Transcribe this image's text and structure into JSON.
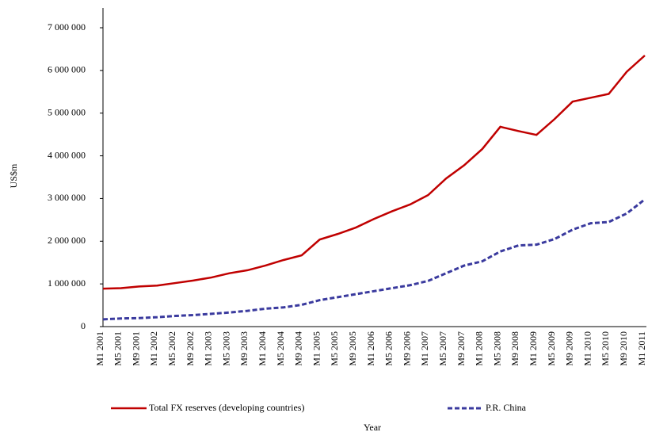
{
  "chart_data": {
    "type": "line",
    "y_label": "US$m",
    "x_label": "Year",
    "categories": [
      "M1 2001",
      "M5 2001",
      "M9 2001",
      "M1 2002",
      "M5 2002",
      "M9 2002",
      "M1 2003",
      "M5 2003",
      "M9 2003",
      "M1 2004",
      "M5 2004",
      "M9 2004",
      "M1 2005",
      "M5 2005",
      "M9 2005",
      "M1 2006",
      "M5 2006",
      "M9 2006",
      "M1 2007",
      "M5 2007",
      "M9 2007",
      "M1 2008",
      "M5 2008",
      "M9 2008",
      "M1 2009",
      "M5 2009",
      "M9 2009",
      "M1 2010",
      "M5 2010",
      "M9 2010",
      "M1 2011"
    ],
    "series": [
      {
        "name": "Total FX reserves (developing countries)",
        "color": "#c00000",
        "dash": false,
        "values": [
          890000,
          900000,
          940000,
          960000,
          1020000,
          1080000,
          1150000,
          1250000,
          1320000,
          1430000,
          1560000,
          1670000,
          2040000,
          2170000,
          2320000,
          2520000,
          2700000,
          2860000,
          3080000,
          3470000,
          3780000,
          4160000,
          4680000,
          4580000,
          4490000,
          4860000,
          5270000,
          5360000,
          5450000,
          5970000,
          6350000
        ]
      },
      {
        "name": "P.R. China",
        "color": "#3a3a9e",
        "dash": true,
        "values": [
          170000,
          190000,
          200000,
          220000,
          250000,
          270000,
          300000,
          330000,
          370000,
          420000,
          450000,
          510000,
          620000,
          690000,
          760000,
          830000,
          900000,
          970000,
          1070000,
          1250000,
          1430000,
          1530000,
          1760000,
          1900000,
          1920000,
          2050000,
          2270000,
          2420000,
          2450000,
          2650000,
          2980000
        ]
      }
    ],
    "ylim": [
      0,
      7000000
    ],
    "yticks": [
      0,
      {
        "value": 1000000,
        "label": "1 000 000"
      },
      {
        "value": 2000000,
        "label": "2 000 000"
      },
      {
        "value": 3000000,
        "label": "3 000 000"
      },
      {
        "value": 4000000,
        "label": "4 000 000"
      },
      {
        "value": 5000000,
        "label": "5 000 000"
      },
      {
        "value": 6000000,
        "label": "6 000 000"
      },
      {
        "value": 7000000,
        "label": "7 000 000"
      }
    ]
  }
}
